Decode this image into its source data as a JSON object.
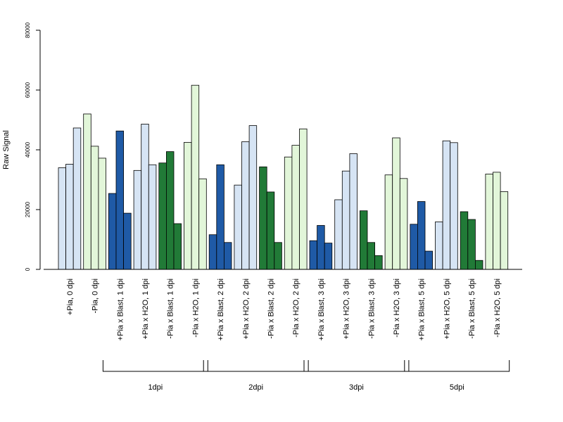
{
  "chart_data": {
    "type": "bar",
    "title": "",
    "xlabel": "",
    "ylabel": "Raw Signal",
    "ylim": [
      0,
      80000
    ],
    "yticks": [
      0,
      20000,
      40000,
      60000,
      80000
    ],
    "grid": false,
    "colors": {
      "light_blue": "#d6e4f4",
      "light_green": "#e2f6d9",
      "dark_blue": "#1f5aa6",
      "dark_green": "#217a37",
      "outline": "#000000",
      "axis": "#000000"
    },
    "categories": [
      {
        "label": "+Pia, 0 dpi",
        "color": "light_blue",
        "values": [
          34000,
          35200,
          47300
        ]
      },
      {
        "label": "-Pia, 0 dpi",
        "color": "light_green",
        "values": [
          52000,
          41200,
          37200
        ]
      },
      {
        "label": "+Pia x Blast, 1 dpi",
        "color": "dark_blue",
        "values": [
          25400,
          46300,
          18800
        ]
      },
      {
        "label": "+Pia x H2O, 1 dpi",
        "color": "light_blue",
        "values": [
          33100,
          48600,
          35000
        ]
      },
      {
        "label": "-Pia x Blast, 1 dpi",
        "color": "dark_green",
        "values": [
          35600,
          39400,
          15300
        ]
      },
      {
        "label": "-Pia x H2O, 1 dpi",
        "color": "light_green",
        "values": [
          42500,
          61600,
          30300
        ]
      },
      {
        "label": "+Pia x Blast, 2 dpi",
        "color": "dark_blue",
        "values": [
          11600,
          35000,
          9000
        ]
      },
      {
        "label": "+Pia x H2O, 2 dpi",
        "color": "light_blue",
        "values": [
          28200,
          42700,
          48100
        ]
      },
      {
        "label": "-Pia x Blast, 2 dpi",
        "color": "dark_green",
        "values": [
          34300,
          25900,
          9000
        ]
      },
      {
        "label": "-Pia x H2O, 2 dpi",
        "color": "light_green",
        "values": [
          37600,
          41500,
          47000
        ]
      },
      {
        "label": "+Pia x Blast, 3 dpi",
        "color": "dark_blue",
        "values": [
          9600,
          14700,
          8800
        ]
      },
      {
        "label": "+Pia x H2O, 3 dpi",
        "color": "light_blue",
        "values": [
          23300,
          32900,
          38700
        ]
      },
      {
        "label": "-Pia x Blast, 3 dpi",
        "color": "dark_green",
        "values": [
          19600,
          9000,
          4600
        ]
      },
      {
        "label": "-Pia x H2O, 3 dpi",
        "color": "light_green",
        "values": [
          31600,
          44000,
          30400
        ]
      },
      {
        "label": "+Pia x Blast, 5 dpi",
        "color": "dark_blue",
        "values": [
          15100,
          22700,
          6100
        ]
      },
      {
        "label": "+Pia x H2O, 5 dpi",
        "color": "light_blue",
        "values": [
          15900,
          43000,
          42400
        ]
      },
      {
        "label": "-Pia x Blast, 5 dpi",
        "color": "dark_green",
        "values": [
          19300,
          16700,
          3000
        ]
      },
      {
        "label": "-Pia x H2O, 5 dpi",
        "color": "light_green",
        "values": [
          31900,
          32500,
          26000
        ]
      }
    ],
    "groups": [
      {
        "label": "1dpi",
        "from": 2,
        "to": 5
      },
      {
        "label": "2dpi",
        "from": 6,
        "to": 9
      },
      {
        "label": "3dpi",
        "from": 10,
        "to": 13
      },
      {
        "label": "5dpi",
        "from": 14,
        "to": 17
      }
    ]
  }
}
